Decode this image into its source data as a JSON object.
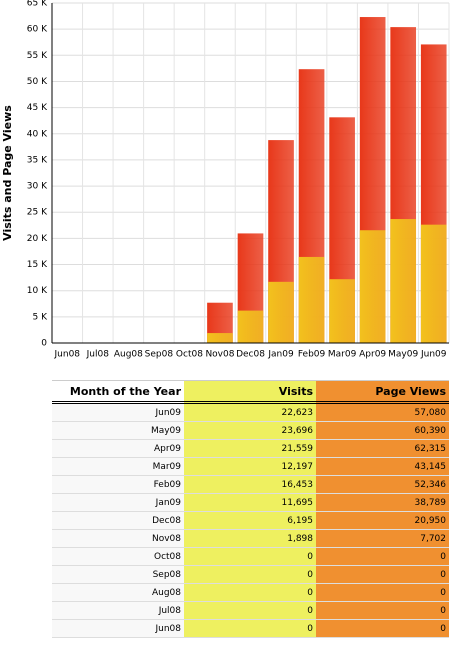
{
  "chart_data": {
    "type": "bar",
    "y_label": "Visits and Page Views",
    "categories": [
      "Jun08",
      "Jul08",
      "Aug08",
      "Sep08",
      "Oct08",
      "Nov08",
      "Dec08",
      "Jan09",
      "Feb09",
      "Mar09",
      "Apr09",
      "May09",
      "Jun09"
    ],
    "series": [
      {
        "name": "Page Views",
        "color": "#e8381a",
        "values": [
          0,
          0,
          0,
          0,
          0,
          7702,
          20950,
          38789,
          52346,
          43145,
          62315,
          60390,
          57080
        ]
      },
      {
        "name": "Visits",
        "color": "#f2c21e",
        "values": [
          0,
          0,
          0,
          0,
          0,
          1898,
          6195,
          11695,
          16453,
          12197,
          21559,
          23696,
          22623
        ]
      }
    ],
    "ylim": [
      0,
      65000
    ],
    "yticks": [
      0,
      {
        "value": 5000,
        "label": "5 K"
      },
      {
        "value": 10000,
        "label": "10 K"
      },
      {
        "value": 15000,
        "label": "15 K"
      },
      {
        "value": 20000,
        "label": "20 K"
      },
      {
        "value": 25000,
        "label": "25 K"
      },
      {
        "value": 30000,
        "label": "30 K"
      },
      {
        "value": 35000,
        "label": "35 K"
      },
      {
        "value": 40000,
        "label": "40 K"
      },
      {
        "value": 45000,
        "label": "45 K"
      },
      {
        "value": 50000,
        "label": "50 K"
      },
      {
        "value": 55000,
        "label": "55 K"
      },
      {
        "value": 60000,
        "label": "60 K"
      },
      {
        "value": 65000,
        "label": "65 K"
      }
    ],
    "grid": true
  },
  "table": {
    "header": [
      "Month of the Year",
      "Visits",
      "Page Views"
    ],
    "rows": [
      [
        "Jun09",
        "22,623",
        "57,080"
      ],
      [
        "May09",
        "23,696",
        "60,390"
      ],
      [
        "Apr09",
        "21,559",
        "62,315"
      ],
      [
        "Mar09",
        "12,197",
        "43,145"
      ],
      [
        "Feb09",
        "16,453",
        "52,346"
      ],
      [
        "Jan09",
        "11,695",
        "38,789"
      ],
      [
        "Dec08",
        "6,195",
        "20,950"
      ],
      [
        "Nov08",
        "1,898",
        "7,702"
      ],
      [
        "Oct08",
        "0",
        "0"
      ],
      [
        "Sep08",
        "0",
        "0"
      ],
      [
        "Aug08",
        "0",
        "0"
      ],
      [
        "Jul08",
        "0",
        "0"
      ],
      [
        "Jun08",
        "0",
        "0"
      ]
    ]
  }
}
